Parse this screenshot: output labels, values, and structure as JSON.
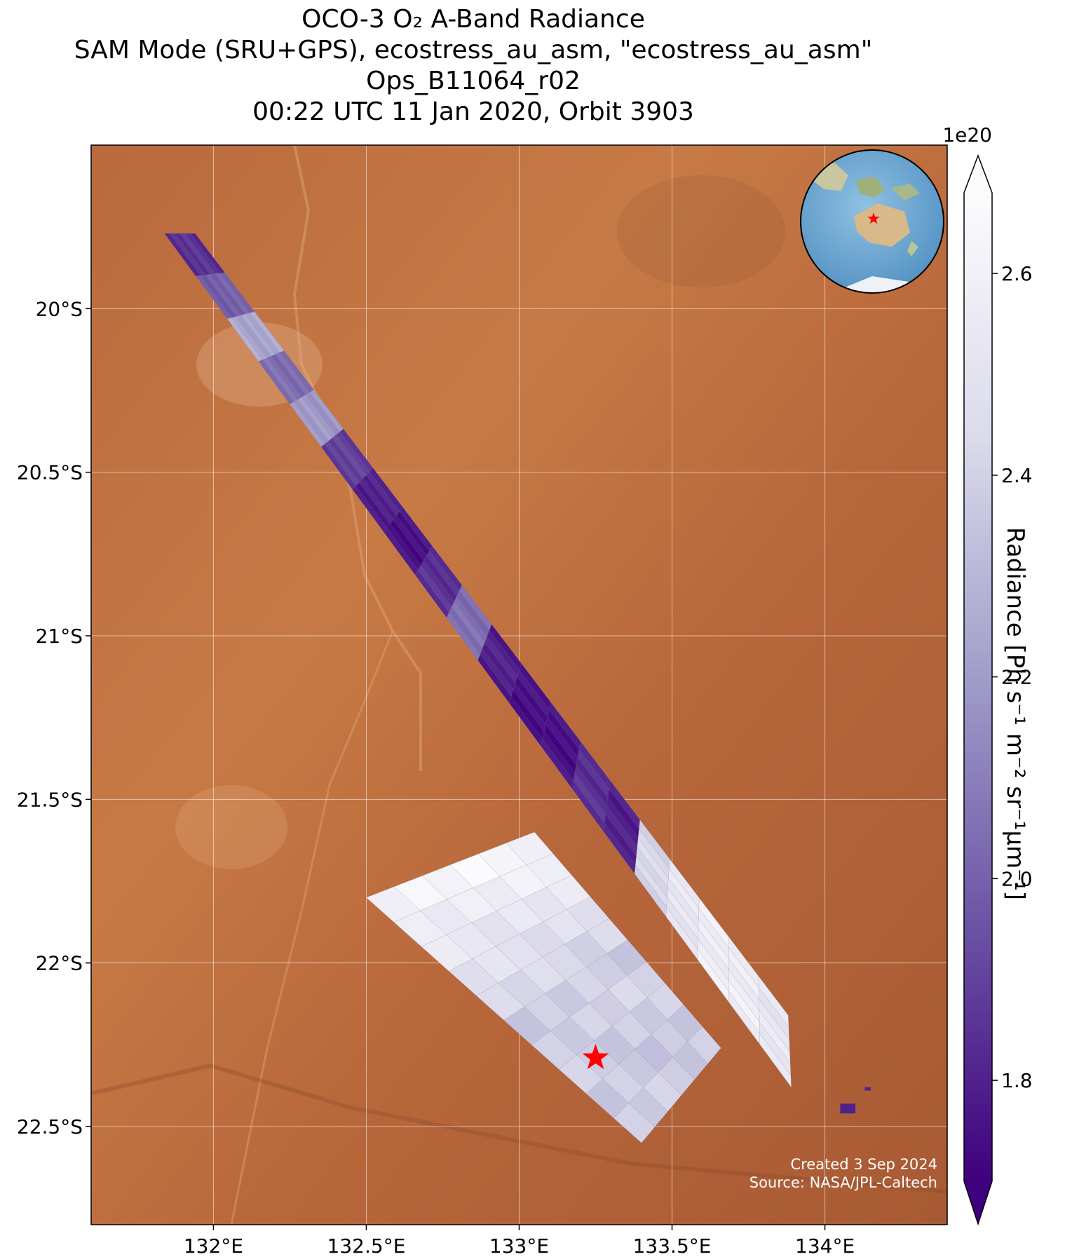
{
  "title": {
    "line1": "OCO-3 O₂ A-Band Radiance",
    "line2": "SAM Mode (SRU+GPS), ecostress_au_asm, \"ecostress_au_asm\"",
    "line3": "Ops_B11064_r02",
    "line4": "00:22 UTC 11 Jan 2020, Orbit 3903"
  },
  "map": {
    "lon_range": [
      131.6,
      134.4
    ],
    "lat_range": [
      -22.8,
      -19.5
    ],
    "lon_ticks": [
      {
        "value": 132.0,
        "label": "132°E"
      },
      {
        "value": 132.5,
        "label": "132.5°E"
      },
      {
        "value": 133.0,
        "label": "133°E"
      },
      {
        "value": 133.5,
        "label": "133.5°E"
      },
      {
        "value": 134.0,
        "label": "134°E"
      }
    ],
    "lat_ticks": [
      {
        "value": -20.0,
        "label": "20°S"
      },
      {
        "value": -20.5,
        "label": "20.5°S"
      },
      {
        "value": -21.0,
        "label": "21°S"
      },
      {
        "value": -21.5,
        "label": "21.5°S"
      },
      {
        "value": -22.0,
        "label": "22°S"
      },
      {
        "value": -22.5,
        "label": "22.5°S"
      }
    ],
    "gridlines": true,
    "background": "satellite imagery (arid desert, red-orange terrain)",
    "target_marker": {
      "lon": 133.25,
      "lat": -22.29,
      "symbol": "star",
      "color": "#ff0000"
    },
    "inset_globe": {
      "placement": "top-right",
      "marker_color": "#ff0000"
    }
  },
  "swaths": [
    {
      "name": "strip",
      "corners": [
        [
          131.84,
          -19.77
        ],
        [
          131.94,
          -19.77
        ],
        [
          133.88,
          -22.16
        ],
        [
          133.89,
          -22.38
        ]
      ],
      "profile": [
        0.15,
        0.3,
        0.55,
        0.35,
        0.5,
        0.2,
        0.1,
        0.05,
        0.15,
        0.35,
        0.1,
        0.05,
        0.05,
        0.15,
        0.1,
        0.75,
        0.85,
        0.9,
        0.9,
        0.85
      ]
    },
    {
      "name": "sam-block",
      "corners": [
        [
          132.5,
          -21.8
        ],
        [
          133.05,
          -21.6
        ],
        [
          133.66,
          -22.26
        ],
        [
          133.4,
          -22.55
        ]
      ],
      "profile": [
        0.95,
        0.9,
        0.85,
        0.8,
        0.75,
        0.7,
        0.72,
        0.7,
        0.68,
        0.7
      ]
    },
    {
      "name": "small-bit-1",
      "corners": [
        [
          134.05,
          -22.43
        ],
        [
          134.1,
          -22.43
        ],
        [
          134.1,
          -22.46
        ],
        [
          134.05,
          -22.46
        ]
      ],
      "profile": [
        0.1
      ]
    },
    {
      "name": "small-bit-2",
      "corners": [
        [
          134.13,
          -22.38
        ],
        [
          134.15,
          -22.38
        ],
        [
          134.15,
          -22.39
        ],
        [
          134.13,
          -22.39
        ]
      ],
      "profile": [
        0.1
      ]
    }
  ],
  "colorbar": {
    "range": [
      1.7,
      2.68
    ],
    "ticks": [
      {
        "value": 1.8,
        "label": "1.8"
      },
      {
        "value": 2.0,
        "label": "2.0"
      },
      {
        "value": 2.2,
        "label": "2.2"
      },
      {
        "value": 2.4,
        "label": "2.4"
      },
      {
        "value": 2.6,
        "label": "2.6"
      }
    ],
    "multiplier": "1e20",
    "colormap": "Purples_r",
    "color_low": "#3f007d",
    "color_high": "#fcfbfd",
    "extend": "both",
    "label": "Radiance [Ph s⁻¹ m⁻² sr⁻¹µm⁻¹]"
  },
  "credits": {
    "created": "Created 3 Sep 2024",
    "source": "Source: NASA/JPL-Caltech"
  }
}
